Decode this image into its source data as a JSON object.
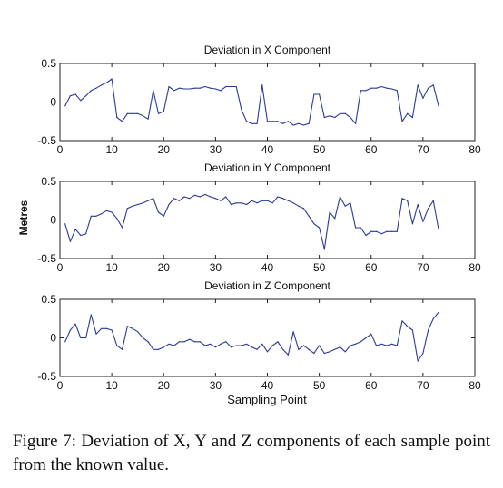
{
  "figure": {
    "ylabel": "Metres",
    "xlabel": "Sampling Point",
    "caption": "Figure 7: Deviation of X, Y and Z components of each sample point from the known value."
  },
  "chart_data": [
    {
      "type": "line",
      "title": "Deviation in X Component",
      "xlabel": "",
      "ylabel": "Metres",
      "xlim": [
        0,
        80
      ],
      "ylim": [
        -0.5,
        0.5
      ],
      "xticks": [
        0,
        10,
        20,
        30,
        40,
        50,
        60,
        70,
        80
      ],
      "yticks": [
        0.5,
        0,
        -0.5
      ],
      "grid": false,
      "color": "#2b3a9a",
      "x": [
        1,
        2,
        3,
        4,
        5,
        6,
        7,
        8,
        9,
        10,
        11,
        12,
        13,
        14,
        15,
        16,
        17,
        18,
        19,
        20,
        21,
        22,
        23,
        24,
        25,
        26,
        27,
        28,
        29,
        30,
        31,
        32,
        33,
        34,
        35,
        36,
        37,
        38,
        39,
        40,
        41,
        42,
        43,
        44,
        45,
        46,
        47,
        48,
        49,
        50,
        51,
        52,
        53,
        54,
        55,
        56,
        57,
        58,
        59,
        60,
        61,
        62,
        63,
        64,
        65,
        66,
        67,
        68,
        69,
        70,
        71,
        72,
        73
      ],
      "y": [
        -0.05,
        0.08,
        0.1,
        0.02,
        0.08,
        0.15,
        0.18,
        0.22,
        0.25,
        0.3,
        -0.2,
        -0.25,
        -0.15,
        -0.15,
        -0.15,
        -0.18,
        -0.22,
        0.15,
        -0.15,
        -0.12,
        0.2,
        0.15,
        0.18,
        0.17,
        0.17,
        0.18,
        0.18,
        0.2,
        0.18,
        0.17,
        0.15,
        0.2,
        0.2,
        0.2,
        -0.1,
        -0.25,
        -0.28,
        -0.28,
        0.22,
        -0.25,
        -0.25,
        -0.25,
        -0.28,
        -0.25,
        -0.3,
        -0.28,
        -0.3,
        -0.28,
        0.1,
        0.1,
        -0.2,
        -0.18,
        -0.2,
        -0.15,
        -0.15,
        -0.2,
        -0.28,
        0.15,
        0.15,
        0.18,
        0.18,
        0.2,
        0.18,
        0.17,
        0.15,
        -0.25,
        -0.15,
        -0.2,
        0.22,
        0.05,
        0.18,
        0.22,
        -0.05
      ]
    },
    {
      "type": "line",
      "title": "Deviation in Y Component",
      "xlabel": "",
      "ylabel": "Metres",
      "xlim": [
        0,
        80
      ],
      "ylim": [
        -0.5,
        0.5
      ],
      "xticks": [
        0,
        10,
        20,
        30,
        40,
        50,
        60,
        70,
        80
      ],
      "yticks": [
        0.5,
        0,
        -0.5
      ],
      "grid": false,
      "color": "#2b3a9a",
      "x": [
        1,
        2,
        3,
        4,
        5,
        6,
        7,
        8,
        9,
        10,
        11,
        12,
        13,
        14,
        15,
        16,
        17,
        18,
        19,
        20,
        21,
        22,
        23,
        24,
        25,
        26,
        27,
        28,
        29,
        30,
        31,
        32,
        33,
        34,
        35,
        36,
        37,
        38,
        39,
        40,
        41,
        42,
        43,
        44,
        45,
        46,
        47,
        48,
        49,
        50,
        51,
        52,
        53,
        54,
        55,
        56,
        57,
        58,
        59,
        60,
        61,
        62,
        63,
        64,
        65,
        66,
        67,
        68,
        69,
        70,
        71,
        72,
        73
      ],
      "y": [
        -0.05,
        -0.28,
        -0.12,
        -0.2,
        -0.18,
        0.05,
        0.05,
        0.08,
        0.12,
        0.1,
        0.02,
        -0.1,
        0.15,
        0.18,
        0.2,
        0.22,
        0.25,
        0.28,
        0.1,
        0.05,
        0.2,
        0.28,
        0.25,
        0.3,
        0.28,
        0.32,
        0.3,
        0.33,
        0.3,
        0.28,
        0.25,
        0.3,
        0.2,
        0.22,
        0.22,
        0.2,
        0.25,
        0.22,
        0.25,
        0.25,
        0.22,
        0.3,
        0.28,
        0.25,
        0.22,
        0.18,
        0.15,
        0.05,
        -0.05,
        -0.1,
        -0.38,
        0.1,
        0.02,
        0.3,
        0.18,
        0.22,
        -0.1,
        -0.1,
        -0.2,
        -0.15,
        -0.15,
        -0.18,
        -0.15,
        -0.15,
        -0.15,
        0.28,
        0.25,
        -0.05,
        0.2,
        -0.02,
        0.15,
        0.25,
        -0.12
      ]
    },
    {
      "type": "line",
      "title": "Deviation in Z Component",
      "xlabel": "Sampling Point",
      "ylabel": "Metres",
      "xlim": [
        0,
        80
      ],
      "ylim": [
        -0.5,
        0.5
      ],
      "xticks": [
        0,
        10,
        20,
        30,
        40,
        50,
        60,
        70,
        80
      ],
      "yticks": [
        0.5,
        0,
        -0.5
      ],
      "grid": false,
      "color": "#2b3a9a",
      "x": [
        1,
        2,
        3,
        4,
        5,
        6,
        7,
        8,
        9,
        10,
        11,
        12,
        13,
        14,
        15,
        16,
        17,
        18,
        19,
        20,
        21,
        22,
        23,
        24,
        25,
        26,
        27,
        28,
        29,
        30,
        31,
        32,
        33,
        34,
        35,
        36,
        37,
        38,
        39,
        40,
        41,
        42,
        43,
        44,
        45,
        46,
        47,
        48,
        49,
        50,
        51,
        52,
        53,
        54,
        55,
        56,
        57,
        58,
        59,
        60,
        61,
        62,
        63,
        64,
        65,
        66,
        67,
        68,
        69,
        70,
        71,
        72,
        73
      ],
      "y": [
        -0.05,
        0.1,
        0.18,
        0.0,
        0.0,
        0.3,
        0.05,
        0.12,
        0.12,
        0.1,
        -0.1,
        -0.15,
        0.15,
        0.12,
        0.08,
        0.0,
        -0.05,
        -0.15,
        -0.15,
        -0.12,
        -0.08,
        -0.1,
        -0.05,
        -0.05,
        -0.02,
        -0.05,
        -0.05,
        -0.1,
        -0.08,
        -0.12,
        -0.08,
        -0.05,
        -0.12,
        -0.1,
        -0.1,
        -0.08,
        -0.12,
        -0.15,
        -0.08,
        -0.18,
        -0.1,
        -0.05,
        -0.15,
        -0.22,
        0.08,
        -0.15,
        -0.1,
        -0.15,
        -0.2,
        -0.1,
        -0.2,
        -0.18,
        -0.15,
        -0.12,
        -0.18,
        -0.1,
        -0.08,
        -0.05,
        0.0,
        0.05,
        -0.1,
        -0.08,
        -0.1,
        -0.08,
        -0.1,
        0.22,
        0.15,
        0.1,
        -0.3,
        -0.2,
        0.1,
        0.25,
        0.33
      ]
    }
  ]
}
